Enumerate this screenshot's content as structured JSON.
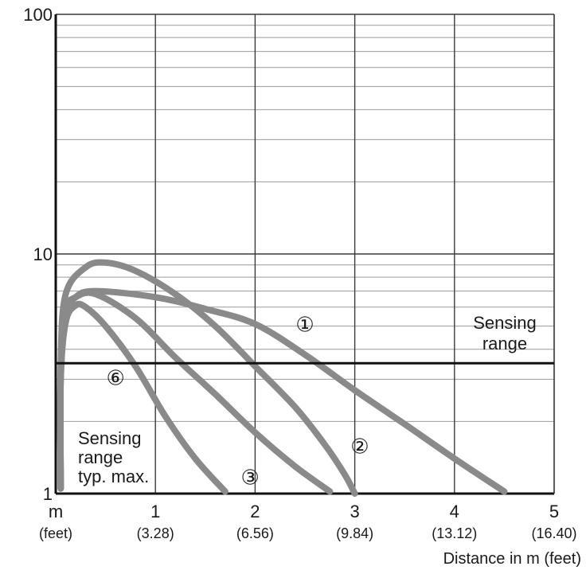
{
  "chart_data": {
    "type": "line",
    "xlim": [
      0,
      5
    ],
    "ylim": [
      1,
      100
    ],
    "y_scale": "log",
    "grid": true,
    "x_ticks": [
      {
        "value": 0,
        "label": "m",
        "sub": "(feet)"
      },
      {
        "value": 1,
        "label": "1",
        "sub": "(3.28)"
      },
      {
        "value": 2,
        "label": "2",
        "sub": "(6.56)"
      },
      {
        "value": 3,
        "label": "3",
        "sub": "(9.84)"
      },
      {
        "value": 4,
        "label": "4",
        "sub": "(13.12)"
      },
      {
        "value": 5,
        "label": "5",
        "sub": "(16.40)"
      }
    ],
    "y_ticks": [
      {
        "value": 1,
        "label": "1"
      },
      {
        "value": 10,
        "label": "10"
      },
      {
        "value": 100,
        "label": "100"
      }
    ],
    "xlabel": "Distance in m (feet)",
    "ylabel": "",
    "threshold": {
      "value": 3.5,
      "label_line1": "Sensing",
      "label_line2": "range"
    },
    "note": {
      "line1": "Sensing",
      "line2": "range",
      "line3": "typ. max."
    },
    "series": [
      {
        "marker": "①",
        "marker_at": [
          2.5,
          5.0
        ],
        "x": [
          0.05,
          0.05,
          0.1,
          0.2,
          0.4,
          1.0,
          1.5,
          2.0,
          2.5,
          3.0,
          3.5,
          4.0,
          4.5
        ],
        "y": [
          1.05,
          3.0,
          5.5,
          6.6,
          7.0,
          6.6,
          5.9,
          5.1,
          3.8,
          2.7,
          1.95,
          1.4,
          1.02
        ]
      },
      {
        "marker": "②",
        "marker_at": [
          3.05,
          1.55
        ],
        "x": [
          0.05,
          0.05,
          0.1,
          0.3,
          0.5,
          0.8,
          1.2,
          1.6,
          2.0,
          2.4,
          2.7,
          2.9,
          3.0
        ],
        "y": [
          1.05,
          3.5,
          6.8,
          8.8,
          9.2,
          8.5,
          6.8,
          5.0,
          3.4,
          2.3,
          1.6,
          1.2,
          1.0
        ]
      },
      {
        "marker": "③",
        "marker_at": [
          1.95,
          1.15
        ],
        "x": [
          0.05,
          0.05,
          0.1,
          0.2,
          0.4,
          0.8,
          1.2,
          1.6,
          2.0,
          2.4,
          2.75
        ],
        "y": [
          1.05,
          3.2,
          5.8,
          6.6,
          6.8,
          5.4,
          3.7,
          2.6,
          1.8,
          1.3,
          1.02
        ]
      },
      {
        "marker": "⑥",
        "marker_at": [
          0.6,
          3.0
        ],
        "x": [
          0.05,
          0.05,
          0.1,
          0.2,
          0.3,
          0.5,
          0.8,
          1.1,
          1.4,
          1.7
        ],
        "y": [
          1.05,
          3.0,
          5.2,
          6.1,
          6.0,
          5.0,
          3.4,
          2.1,
          1.4,
          1.02
        ]
      }
    ]
  }
}
